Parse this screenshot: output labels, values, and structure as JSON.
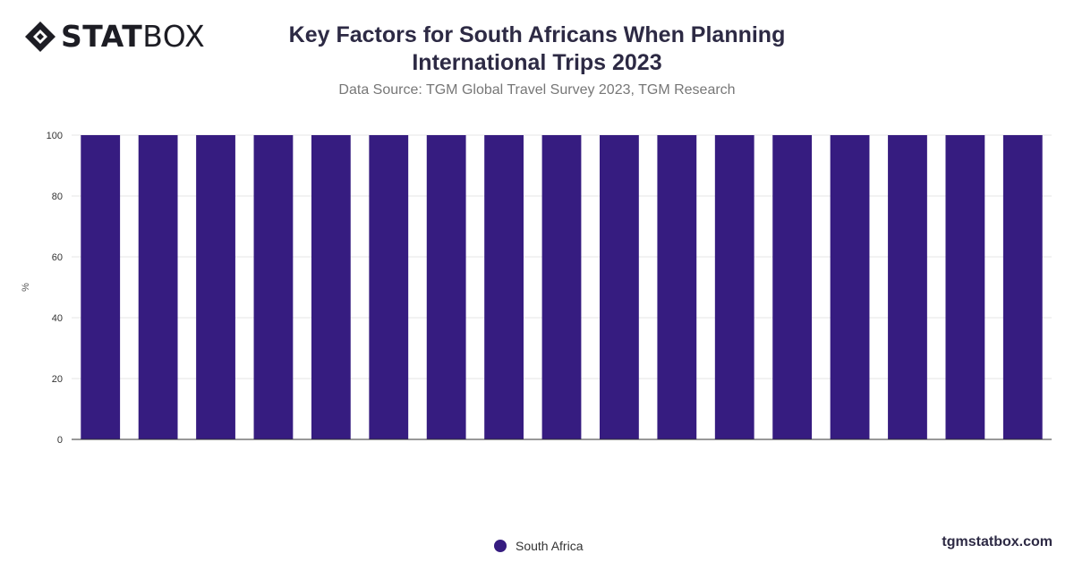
{
  "brand": {
    "logo_icon": "statbox-diamond-icon",
    "logo_bold": "STAT",
    "logo_light": "BOX",
    "site": "tgmstatbox.com"
  },
  "chart_data": {
    "type": "bar",
    "title": "Key Factors for South Africans When Planning International Trips 2023",
    "subtitle": "Data Source: TGM Global Travel Survey 2023, TGM Research",
    "xlabel": "",
    "ylabel": "%",
    "ylim": [
      0,
      100
    ],
    "yticks": [
      0,
      20,
      40,
      60,
      80,
      100
    ],
    "grid": true,
    "legend_position": "bottom-center",
    "series": [
      {
        "name": "South Africa",
        "color": "#361c80",
        "values": [
          100,
          100,
          100,
          100,
          100,
          100,
          100,
          100,
          100,
          100,
          100,
          100,
          100,
          100,
          100,
          100,
          100
        ]
      }
    ]
  }
}
